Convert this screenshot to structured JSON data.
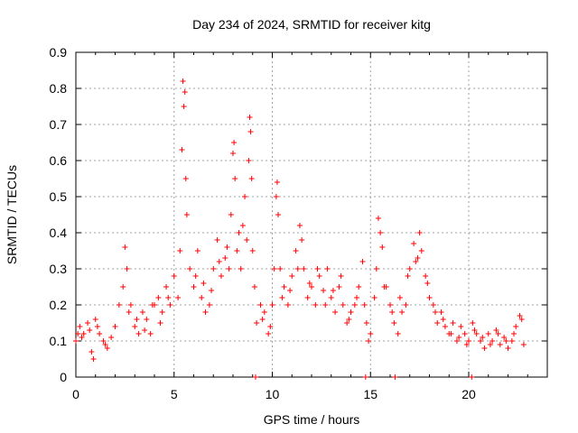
{
  "chart_data": {
    "type": "scatter",
    "title": "Day 234 of 2024, SRMTID for receiver kitg",
    "xlabel": "GPS time / hours",
    "ylabel": "SRMTID / TECUs",
    "xlim": [
      0,
      24
    ],
    "ylim": [
      0,
      0.9
    ],
    "xticks": [
      0,
      5,
      10,
      15,
      20
    ],
    "yticks": [
      0,
      0.1,
      0.2,
      0.3,
      0.4,
      0.5,
      0.6,
      0.7,
      0.8,
      0.9
    ],
    "xtick_labels": [
      "0",
      "5",
      "10",
      "15",
      "20"
    ],
    "ytick_labels": [
      "0",
      "0.1",
      "0.2",
      "0.3",
      "0.4",
      "0.5",
      "0.6",
      "0.7",
      "0.8",
      "0.9"
    ],
    "grid": true,
    "marker": "+",
    "color": "#ff0000",
    "series": [
      {
        "name": "SRMTID",
        "x": [
          0.0,
          0.2,
          0.4,
          0.6,
          0.8,
          0.9,
          1.0,
          1.2,
          1.4,
          1.6,
          1.8,
          2.0,
          2.2,
          2.4,
          2.5,
          2.6,
          2.8,
          3.0,
          3.2,
          3.4,
          3.6,
          3.8,
          4.0,
          4.2,
          4.4,
          4.6,
          4.8,
          5.0,
          5.2,
          5.3,
          5.4,
          5.45,
          5.5,
          5.55,
          5.6,
          5.65,
          5.8,
          6.0,
          6.2,
          6.4,
          6.6,
          6.8,
          7.0,
          7.2,
          7.4,
          7.6,
          7.8,
          7.9,
          8.0,
          8.05,
          8.1,
          8.2,
          8.4,
          8.5,
          8.6,
          8.7,
          8.8,
          8.85,
          8.9,
          8.95,
          9.0,
          9.1,
          9.2,
          9.4,
          9.6,
          9.8,
          10.0,
          10.1,
          10.2,
          10.25,
          10.3,
          10.4,
          10.6,
          10.8,
          11.0,
          11.2,
          11.4,
          11.5,
          11.6,
          11.8,
          12.0,
          12.2,
          12.4,
          12.6,
          12.8,
          13.0,
          13.2,
          13.4,
          13.6,
          13.8,
          14.0,
          14.2,
          14.4,
          14.6,
          14.7,
          14.8,
          15.0,
          15.2,
          15.3,
          15.4,
          15.5,
          15.6,
          15.8,
          16.0,
          16.2,
          16.4,
          16.6,
          16.8,
          17.0,
          17.2,
          17.4,
          17.5,
          17.6,
          17.8,
          18.0,
          18.2,
          18.4,
          18.6,
          18.8,
          19.0,
          19.2,
          19.4,
          19.6,
          19.8,
          20.0,
          20.2,
          20.4,
          20.6,
          20.8,
          21.0,
          21.2,
          21.4,
          21.6,
          21.8,
          22.0,
          22.2,
          22.4,
          22.6,
          22.8,
          9.15,
          14.75,
          16.25,
          20.15,
          0.1,
          0.3,
          0.7,
          1.1,
          1.5,
          2.7,
          3.1,
          3.5,
          3.9,
          4.3,
          4.7,
          6.1,
          6.5,
          6.9,
          7.3,
          7.7,
          8.3,
          9.5,
          9.9,
          10.5,
          10.9,
          11.3,
          11.9,
          12.3,
          12.7,
          13.1,
          13.5,
          13.9,
          14.3,
          14.9,
          15.7,
          16.1,
          16.5,
          16.9,
          17.3,
          17.9,
          18.3,
          18.7,
          19.1,
          19.5,
          19.9,
          20.3,
          20.7,
          21.1,
          21.5,
          21.9,
          22.3,
          22.7
        ],
        "y": [
          0.1,
          0.14,
          0.12,
          0.15,
          0.07,
          0.05,
          0.16,
          0.12,
          0.1,
          0.08,
          0.11,
          0.14,
          0.2,
          0.25,
          0.36,
          0.3,
          0.2,
          0.14,
          0.12,
          0.18,
          0.16,
          0.12,
          0.2,
          0.22,
          0.18,
          0.25,
          0.2,
          0.28,
          0.22,
          0.35,
          0.63,
          0.82,
          0.75,
          0.79,
          0.55,
          0.45,
          0.3,
          0.25,
          0.35,
          0.22,
          0.18,
          0.2,
          0.3,
          0.38,
          0.28,
          0.33,
          0.3,
          0.45,
          0.62,
          0.65,
          0.55,
          0.35,
          0.3,
          0.42,
          0.5,
          0.38,
          0.6,
          0.72,
          0.68,
          0.55,
          0.35,
          0.25,
          0.15,
          0.2,
          0.18,
          0.12,
          0.2,
          0.3,
          0.5,
          0.54,
          0.45,
          0.3,
          0.25,
          0.2,
          0.28,
          0.35,
          0.42,
          0.38,
          0.3,
          0.22,
          0.25,
          0.2,
          0.28,
          0.24,
          0.3,
          0.22,
          0.18,
          0.25,
          0.2,
          0.15,
          0.18,
          0.2,
          0.25,
          0.32,
          0.2,
          0.15,
          0.12,
          0.22,
          0.3,
          0.44,
          0.4,
          0.36,
          0.25,
          0.2,
          0.15,
          0.12,
          0.18,
          0.2,
          0.3,
          0.37,
          0.33,
          0.4,
          0.35,
          0.28,
          0.22,
          0.2,
          0.15,
          0.18,
          0.14,
          0.12,
          0.15,
          0.1,
          0.14,
          0.12,
          0.1,
          0.15,
          0.12,
          0.1,
          0.08,
          0.12,
          0.1,
          0.13,
          0.09,
          0.11,
          0.08,
          0.1,
          0.14,
          0.17,
          0.09,
          0.0,
          0.0,
          0.0,
          0.0,
          0.12,
          0.11,
          0.13,
          0.14,
          0.09,
          0.18,
          0.16,
          0.13,
          0.2,
          0.15,
          0.22,
          0.28,
          0.26,
          0.24,
          0.32,
          0.36,
          0.4,
          0.16,
          0.14,
          0.22,
          0.24,
          0.3,
          0.26,
          0.3,
          0.2,
          0.24,
          0.28,
          0.16,
          0.22,
          0.1,
          0.25,
          0.18,
          0.22,
          0.28,
          0.32,
          0.26,
          0.18,
          0.16,
          0.12,
          0.11,
          0.09,
          0.13,
          0.11,
          0.09,
          0.12,
          0.1,
          0.12,
          0.16
        ]
      }
    ]
  }
}
